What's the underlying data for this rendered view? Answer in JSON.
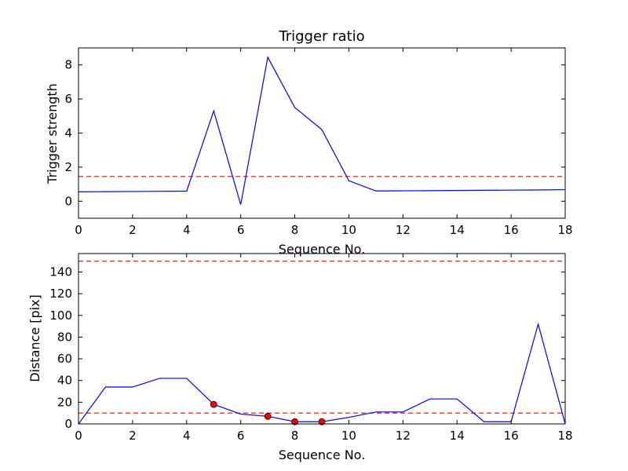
{
  "chart_data": [
    {
      "type": "line",
      "title": "Trigger ratio",
      "xlabel": "Sequence No.",
      "ylabel": "Trigger strength",
      "xlim": [
        0,
        18
      ],
      "ylim": [
        -1,
        9
      ],
      "xticks": [
        0,
        2,
        4,
        6,
        8,
        10,
        12,
        14,
        16,
        18
      ],
      "yticks": [
        0,
        2,
        4,
        6,
        8
      ],
      "grid": false,
      "colors": {
        "line": "#0000ff",
        "threshold": "#ff0000"
      },
      "series": [
        {
          "x": [
            0,
            1,
            2,
            3,
            4,
            5,
            6,
            7,
            8,
            9,
            10,
            11,
            12,
            13,
            14,
            15,
            16,
            17,
            18
          ],
          "values": [
            0.55,
            0.56,
            0.57,
            0.58,
            0.59,
            5.3,
            -0.2,
            8.45,
            5.5,
            4.2,
            1.2,
            0.6,
            0.61,
            0.62,
            0.63,
            0.64,
            0.65,
            0.66,
            0.68
          ]
        }
      ],
      "threshold_lines": [
        1.45
      ]
    },
    {
      "type": "line",
      "title": "",
      "xlabel": "Sequence No.",
      "ylabel": "Distance [pix]",
      "xlim": [
        0,
        18
      ],
      "ylim": [
        0,
        157
      ],
      "xticks": [
        0,
        2,
        4,
        6,
        8,
        10,
        12,
        14,
        16,
        18
      ],
      "yticks": [
        0,
        20,
        40,
        60,
        80,
        100,
        120,
        140
      ],
      "grid": false,
      "colors": {
        "line": "#0000ff",
        "threshold": "#ff0000",
        "marker": "#ff0000"
      },
      "series": [
        {
          "x": [
            0,
            1,
            2,
            3,
            4,
            5,
            6,
            7,
            8,
            9,
            10,
            11,
            12,
            13,
            14,
            15,
            16,
            17,
            18
          ],
          "values": [
            0,
            34,
            34,
            42,
            42,
            18,
            9,
            7,
            2,
            2,
            6,
            11,
            11,
            23,
            23,
            2,
            2,
            92,
            0
          ]
        }
      ],
      "markers": {
        "x": [
          5,
          7,
          8,
          9
        ],
        "values": [
          18,
          7,
          2,
          2
        ]
      },
      "threshold_lines": [
        150,
        10
      ]
    }
  ]
}
